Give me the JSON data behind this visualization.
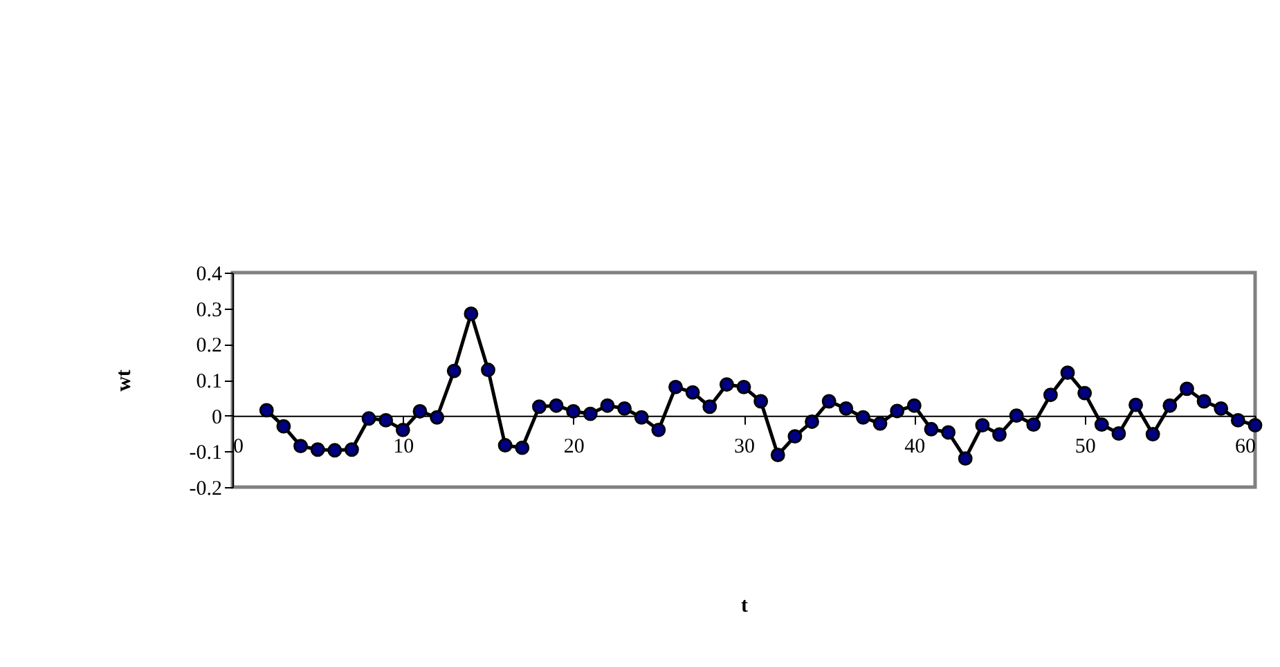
{
  "chart_data": {
    "type": "line",
    "xlabel": "t",
    "ylabel": "wt",
    "x": [
      2,
      3,
      4,
      5,
      6,
      7,
      8,
      9,
      10,
      11,
      12,
      13,
      14,
      15,
      16,
      17,
      18,
      19,
      20,
      21,
      22,
      23,
      24,
      25,
      26,
      27,
      28,
      29,
      30,
      31,
      32,
      33,
      34,
      35,
      36,
      37,
      38,
      39,
      40,
      41,
      42,
      43,
      44,
      45,
      46,
      47,
      48,
      49,
      50,
      51,
      52,
      53,
      54,
      55,
      56,
      57,
      58,
      59,
      60
    ],
    "series": [
      {
        "color": "#000080",
        "values": [
          0.015,
          -0.03,
          -0.085,
          -0.095,
          -0.097,
          -0.095,
          -0.008,
          -0.013,
          -0.04,
          0.012,
          -0.005,
          0.125,
          0.285,
          0.128,
          -0.083,
          -0.09,
          0.025,
          0.028,
          0.012,
          0.005,
          0.028,
          0.02,
          -0.005,
          -0.04,
          0.08,
          0.065,
          0.025,
          0.087,
          0.08,
          0.04,
          -0.11,
          -0.058,
          -0.017,
          0.04,
          0.02,
          -0.005,
          -0.022,
          0.013,
          0.028,
          -0.038,
          -0.047,
          -0.12,
          -0.027,
          -0.053,
          0,
          -0.025,
          0.058,
          0.12,
          0.063,
          -0.025,
          -0.05,
          0.03,
          -0.052,
          0.028,
          0.075,
          0.04,
          0.02,
          -0.013,
          -0.027
        ]
      }
    ],
    "xlim": [
      0,
      60
    ],
    "xticks": [
      0,
      10,
      20,
      30,
      40,
      50,
      60
    ],
    "ylim": [
      -0.2,
      0.4
    ],
    "yticks": [
      -0.2,
      -0.1,
      0,
      0.1,
      0.2,
      0.3,
      0.4
    ],
    "grid": false,
    "marker": "circle",
    "line_style": "solid"
  }
}
